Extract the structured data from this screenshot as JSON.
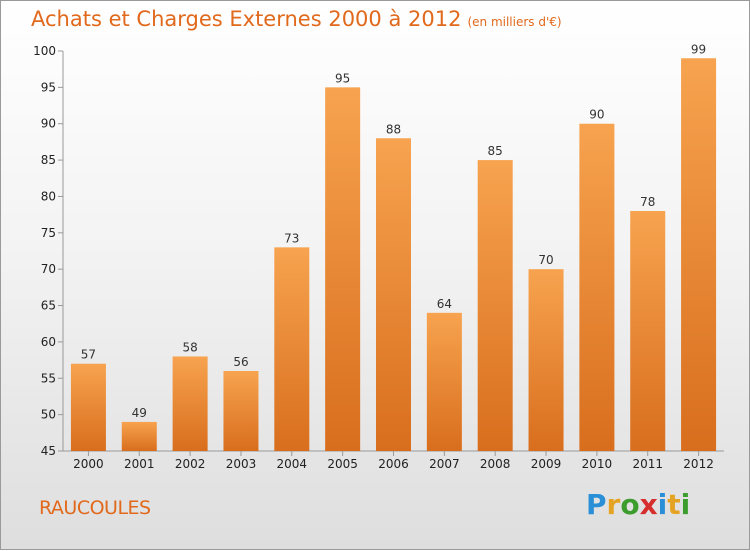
{
  "chart_data": {
    "type": "bar",
    "title": "Achats et Charges Externes 2000 à 2012",
    "subtitle": "(en milliers d'€)",
    "categories": [
      "2000",
      "2001",
      "2002",
      "2003",
      "2004",
      "2005",
      "2006",
      "2007",
      "2008",
      "2009",
      "2010",
      "2011",
      "2012"
    ],
    "values": [
      57,
      49,
      58,
      56,
      73,
      95,
      88,
      64,
      85,
      70,
      90,
      78,
      99
    ],
    "ylim": [
      45,
      100
    ],
    "yticks": [
      45,
      50,
      55,
      60,
      65,
      70,
      75,
      80,
      85,
      90,
      95,
      100
    ],
    "grid": false,
    "bar_color": "#f0872f",
    "xlabel": "",
    "ylabel": ""
  },
  "footer": {
    "city": "RAUCOULES",
    "logo": "Proxiti",
    "title_color": "#e1691c"
  }
}
